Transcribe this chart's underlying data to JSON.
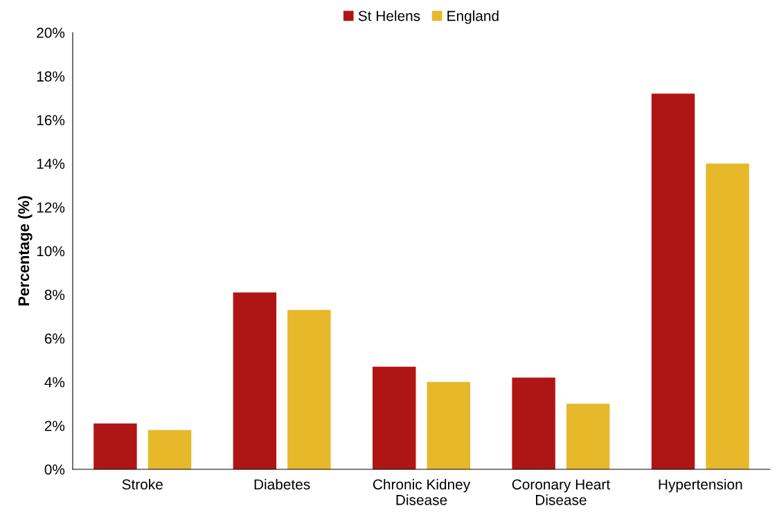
{
  "chart_data": {
    "type": "bar",
    "ylabel": "Percentage (%)",
    "categories": [
      "Stroke",
      "Diabetes",
      "Chronic Kidney\nDisease",
      "Coronary Heart\nDisease",
      "Hypertension"
    ],
    "series": [
      {
        "name": "St Helens",
        "color": "#b01515",
        "values": [
          2.1,
          8.1,
          4.7,
          4.2,
          17.2
        ]
      },
      {
        "name": "England",
        "color": "#e6b82a",
        "values": [
          1.8,
          7.3,
          4.0,
          3.0,
          14.0
        ]
      }
    ],
    "ylim": [
      0,
      20
    ],
    "yticks": [
      {
        "value": 0,
        "label": "0%"
      },
      {
        "value": 2,
        "label": "2%"
      },
      {
        "value": 4,
        "label": "4%"
      },
      {
        "value": 6,
        "label": "6%"
      },
      {
        "value": 8,
        "label": "8%"
      },
      {
        "value": 10,
        "label": "10%"
      },
      {
        "value": 12,
        "label": "12%"
      },
      {
        "value": 14,
        "label": "14%"
      },
      {
        "value": 16,
        "label": "16%"
      },
      {
        "value": 18,
        "label": "18%"
      },
      {
        "value": 20,
        "label": "20%"
      }
    ],
    "grid": false,
    "legend": "top"
  }
}
